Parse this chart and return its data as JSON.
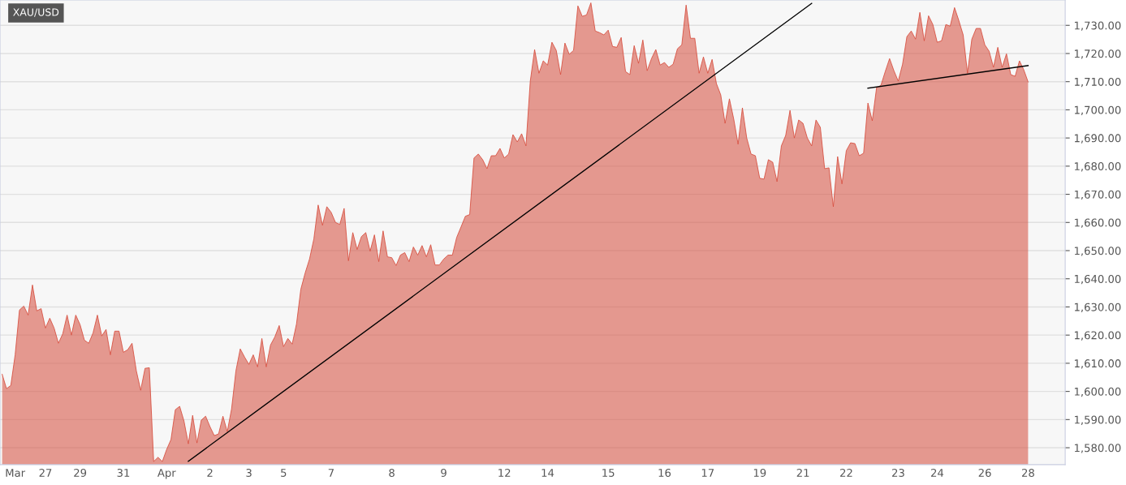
{
  "chart_data": {
    "type": "area",
    "title": "XAU/USD",
    "categories": [
      null,
      null,
      null,
      "Mar",
      null,
      null,
      null,
      null,
      null,
      null,
      "27",
      null,
      null,
      null,
      null,
      null,
      null,
      null,
      "29",
      null,
      null,
      null,
      null,
      null,
      null,
      null,
      null,
      null,
      "31",
      null,
      null,
      null,
      null,
      null,
      null,
      null,
      null,
      null,
      "Apr",
      null,
      null,
      null,
      null,
      null,
      null,
      null,
      null,
      null,
      "2",
      null,
      null,
      null,
      null,
      null,
      null,
      null,
      null,
      "3",
      null,
      null,
      null,
      null,
      null,
      null,
      null,
      "5",
      null,
      null,
      null,
      null,
      null,
      null,
      null,
      null,
      null,
      null,
      "7",
      null,
      null,
      null,
      null,
      null,
      null,
      null,
      null,
      null,
      null,
      null,
      null,
      null,
      "8",
      null,
      null,
      null,
      null,
      null,
      null,
      null,
      null,
      null,
      null,
      null,
      "9",
      null,
      null,
      null,
      null,
      null,
      null,
      null,
      null,
      null,
      null,
      null,
      null,
      null,
      "12",
      null,
      null,
      null,
      null,
      null,
      null,
      null,
      null,
      null,
      "14",
      null,
      null,
      null,
      null,
      null,
      null,
      null,
      null,
      null,
      null,
      null,
      null,
      null,
      "15",
      null,
      null,
      null,
      null,
      null,
      null,
      null,
      null,
      null,
      null,
      null,
      null,
      "16",
      null,
      null,
      null,
      null,
      null,
      null,
      null,
      null,
      null,
      "17",
      null,
      null,
      null,
      null,
      null,
      null,
      null,
      null,
      null,
      null,
      null,
      "19",
      null,
      null,
      null,
      null,
      null,
      null,
      null,
      null,
      null,
      "21",
      null,
      null,
      null,
      null,
      null,
      null,
      null,
      null,
      null,
      "22",
      null,
      null,
      null,
      null,
      null,
      null,
      null,
      null,
      null,
      null,
      null,
      "23",
      null,
      null,
      null,
      null,
      null,
      null,
      null,
      null,
      "24",
      null,
      null,
      null,
      null,
      null,
      null,
      null,
      null,
      null,
      null,
      "26",
      null,
      null,
      null,
      null,
      null,
      null,
      null,
      null,
      null,
      "28"
    ],
    "ylim": [
      1574,
      1739
    ],
    "yticks": [
      {
        "value": 1580,
        "label": "1,580.00"
      },
      {
        "value": 1590,
        "label": "1,590.00"
      },
      {
        "value": 1600,
        "label": "1,600.00"
      },
      {
        "value": 1610,
        "label": "1,610.00"
      },
      {
        "value": 1620,
        "label": "1,620.00"
      },
      {
        "value": 1630,
        "label": "1,630.00"
      },
      {
        "value": 1640,
        "label": "1,640.00"
      },
      {
        "value": 1650,
        "label": "1,650.00"
      },
      {
        "value": 1660,
        "label": "1,660.00"
      },
      {
        "value": 1670,
        "label": "1,670.00"
      },
      {
        "value": 1680,
        "label": "1,680.00"
      },
      {
        "value": 1690,
        "label": "1,690.00"
      },
      {
        "value": 1700,
        "label": "1,700.00"
      },
      {
        "value": 1710,
        "label": "1,710.00"
      },
      {
        "value": 1720,
        "label": "1,720.00"
      },
      {
        "value": 1730,
        "label": "1,730.00"
      }
    ],
    "grid": "y",
    "series": [
      {
        "color": "#d64a3b",
        "values": [
          1606.1,
          1601,
          1602.1,
          1613,
          1628.9,
          1630.3,
          1627.1,
          1637.8,
          1628.6,
          1629.4,
          1622.5,
          1626,
          1622.5,
          1617.1,
          1620.5,
          1627.1,
          1620,
          1627.1,
          1623.7,
          1618.2,
          1617.1,
          1620.8,
          1627.1,
          1619.7,
          1622,
          1613,
          1621.4,
          1621.4,
          1613.9,
          1614.8,
          1617.1,
          1607.3,
          1600.4,
          1608.2,
          1608.4,
          1575.1,
          1576.6,
          1575.1,
          1579.4,
          1582.9,
          1593.5,
          1594.7,
          1589.5,
          1581.4,
          1591.5,
          1581.7,
          1589.8,
          1591.2,
          1587.5,
          1584.3,
          1584.9,
          1591.2,
          1585.7,
          1593.8,
          1607.3,
          1615.1,
          1612.2,
          1609.6,
          1613,
          1608.7,
          1618.8,
          1608.7,
          1616.5,
          1619.4,
          1623.4,
          1615.9,
          1618.8,
          1616.8,
          1624,
          1636.3,
          1642.1,
          1647,
          1654.1,
          1666.2,
          1659,
          1665.6,
          1663.6,
          1660,
          1659.3,
          1665,
          1646.4,
          1656.4,
          1650.4,
          1655,
          1656.4,
          1649.8,
          1655.6,
          1646.1,
          1657,
          1647.8,
          1647.5,
          1644.7,
          1648.4,
          1649.3,
          1646.1,
          1651.3,
          1648.4,
          1651.8,
          1647.8,
          1652.1,
          1644.9,
          1644.9,
          1647,
          1648.4,
          1648.4,
          1654.7,
          1658.4,
          1662.2,
          1662.8,
          1682.9,
          1684.3,
          1682.3,
          1679.1,
          1683.7,
          1683.7,
          1686.3,
          1682.9,
          1684.3,
          1691.2,
          1688.6,
          1691.5,
          1687.2,
          1710.2,
          1721.4,
          1713,
          1717.4,
          1715.9,
          1724,
          1721.1,
          1712.5,
          1723.7,
          1719.7,
          1721.1,
          1736.9,
          1733.2,
          1733.7,
          1738,
          1728,
          1727.4,
          1726.6,
          1728.3,
          1722.5,
          1722.2,
          1725.7,
          1713.6,
          1712.5,
          1722.8,
          1716.5,
          1724.8,
          1713.9,
          1718.2,
          1721.4,
          1715.9,
          1716.8,
          1715.1,
          1716.2,
          1721.7,
          1723.1,
          1737.2,
          1725.4,
          1725.4,
          1713,
          1718.8,
          1713,
          1717.9,
          1709.3,
          1705.3,
          1695.2,
          1703.9,
          1696.7,
          1687.8,
          1700.7,
          1690,
          1684.3,
          1683.7,
          1675.7,
          1675.4,
          1682.3,
          1681.4,
          1674.5,
          1687.2,
          1690.9,
          1699.8,
          1690,
          1696.4,
          1695.2,
          1690,
          1687.2,
          1696.4,
          1693.8,
          1679.1,
          1679.4,
          1665.6,
          1683.4,
          1673.7,
          1685.5,
          1688.3,
          1688,
          1683.7,
          1684.6,
          1702.4,
          1696.1,
          1707.9,
          1708.7,
          1713.6,
          1718.2,
          1713.9,
          1710.2,
          1716.2,
          1726,
          1728,
          1725.1,
          1734.6,
          1724.5,
          1733.4,
          1730.3,
          1724,
          1724.5,
          1730.3,
          1729.7,
          1736.3,
          1731.7,
          1726.6,
          1713,
          1725.1,
          1728.9,
          1728.9,
          1723.1,
          1720.8,
          1715.1,
          1722.2,
          1715.1,
          1719.9,
          1712.5,
          1711.9,
          1717.4,
          1714.2,
          1709.9
        ]
      },
      {
        "type": "line",
        "color": "#000000",
        "values": [
          null,
          null,
          null,
          null,
          null,
          null,
          null,
          null,
          null,
          null,
          null,
          null,
          null,
          null,
          null,
          null,
          null,
          null,
          null,
          null,
          null,
          null,
          null,
          null,
          null,
          null,
          null,
          null,
          null,
          null,
          null,
          null,
          null,
          null,
          null,
          null,
          null,
          null,
          null,
          null,
          null,
          null,
          null,
          1575.2,
          null,
          null,
          null,
          null,
          null,
          null,
          null,
          null,
          null,
          null,
          null,
          null,
          null,
          null,
          null,
          null,
          null,
          null,
          null,
          null,
          null,
          null,
          null,
          null,
          null,
          null,
          null,
          null,
          null,
          null,
          null,
          null,
          null,
          null,
          null,
          null,
          null,
          null,
          null,
          null,
          null,
          null,
          null,
          null,
          null,
          null,
          null,
          null,
          null,
          null,
          null,
          null,
          null,
          null,
          null,
          null,
          null,
          null,
          null,
          null,
          null,
          null,
          null,
          null,
          null,
          null,
          null,
          null,
          null,
          null,
          null,
          null,
          null,
          null,
          null,
          null,
          null,
          null,
          null,
          null,
          null,
          null,
          null,
          null,
          null,
          null,
          null,
          null,
          null,
          null,
          null,
          null,
          null,
          null,
          null,
          null,
          null,
          null,
          null,
          null,
          null,
          null,
          null,
          null,
          null,
          null,
          null,
          null,
          null,
          null,
          null,
          null,
          null,
          null,
          null,
          null,
          null,
          null,
          null,
          null,
          null,
          null,
          null,
          null,
          null,
          null,
          null,
          null,
          null,
          null,
          null,
          null,
          null,
          null,
          null,
          null,
          null,
          null,
          null,
          null,
          null,
          null,
          null,
          1737.8,
          null,
          null,
          null,
          null,
          null,
          null,
          null,
          null,
          null,
          null,
          null,
          null,
          null,
          null,
          null,
          null,
          null,
          null,
          null,
          null,
          null,
          null,
          null,
          null,
          null,
          null,
          null,
          null,
          null,
          null,
          null,
          null,
          null,
          null,
          null,
          null,
          null,
          null,
          null,
          null,
          null,
          null,
          null,
          null,
          null,
          null,
          null,
          null,
          null,
          null
        ]
      },
      {
        "type": "line",
        "color": "#000000",
        "values": [
          null,
          null,
          null,
          null,
          null,
          null,
          null,
          null,
          null,
          null,
          null,
          null,
          null,
          null,
          null,
          null,
          null,
          null,
          null,
          null,
          null,
          null,
          null,
          null,
          null,
          null,
          null,
          null,
          null,
          null,
          null,
          null,
          null,
          null,
          null,
          null,
          null,
          null,
          null,
          null,
          null,
          null,
          null,
          null,
          null,
          null,
          null,
          null,
          null,
          null,
          null,
          null,
          null,
          null,
          null,
          null,
          null,
          null,
          null,
          null,
          null,
          null,
          null,
          null,
          null,
          null,
          null,
          null,
          null,
          null,
          null,
          null,
          null,
          null,
          null,
          null,
          null,
          null,
          null,
          null,
          null,
          null,
          null,
          null,
          null,
          null,
          null,
          null,
          null,
          null,
          null,
          null,
          null,
          null,
          null,
          null,
          null,
          null,
          null,
          null,
          null,
          null,
          null,
          null,
          null,
          null,
          null,
          null,
          null,
          null,
          null,
          null,
          null,
          null,
          null,
          null,
          null,
          null,
          null,
          null,
          null,
          null,
          null,
          null,
          null,
          null,
          null,
          null,
          null,
          null,
          null,
          null,
          null,
          null,
          null,
          null,
          null,
          null,
          null,
          null,
          null,
          null,
          null,
          null,
          null,
          null,
          null,
          null,
          null,
          null,
          null,
          null,
          null,
          null,
          null,
          null,
          null,
          null,
          null,
          null,
          null,
          null,
          null,
          null,
          null,
          null,
          null,
          null,
          null,
          null,
          null,
          null,
          null,
          null,
          null,
          null,
          null,
          null,
          null,
          null,
          null,
          null,
          null,
          null,
          null,
          null,
          null,
          null,
          null,
          null,
          null,
          null,
          null,
          null,
          null,
          null,
          null,
          null,
          null,
          null,
          1707.7,
          null,
          null,
          null,
          null,
          null,
          null,
          null,
          null,
          null,
          null,
          null,
          null,
          null,
          null,
          null,
          null,
          null,
          null,
          null,
          null,
          null,
          null,
          null,
          null,
          null,
          null,
          null,
          null,
          null,
          null,
          null,
          null,
          null,
          null,
          null,
          null,
          1715.7
        ]
      }
    ]
  }
}
